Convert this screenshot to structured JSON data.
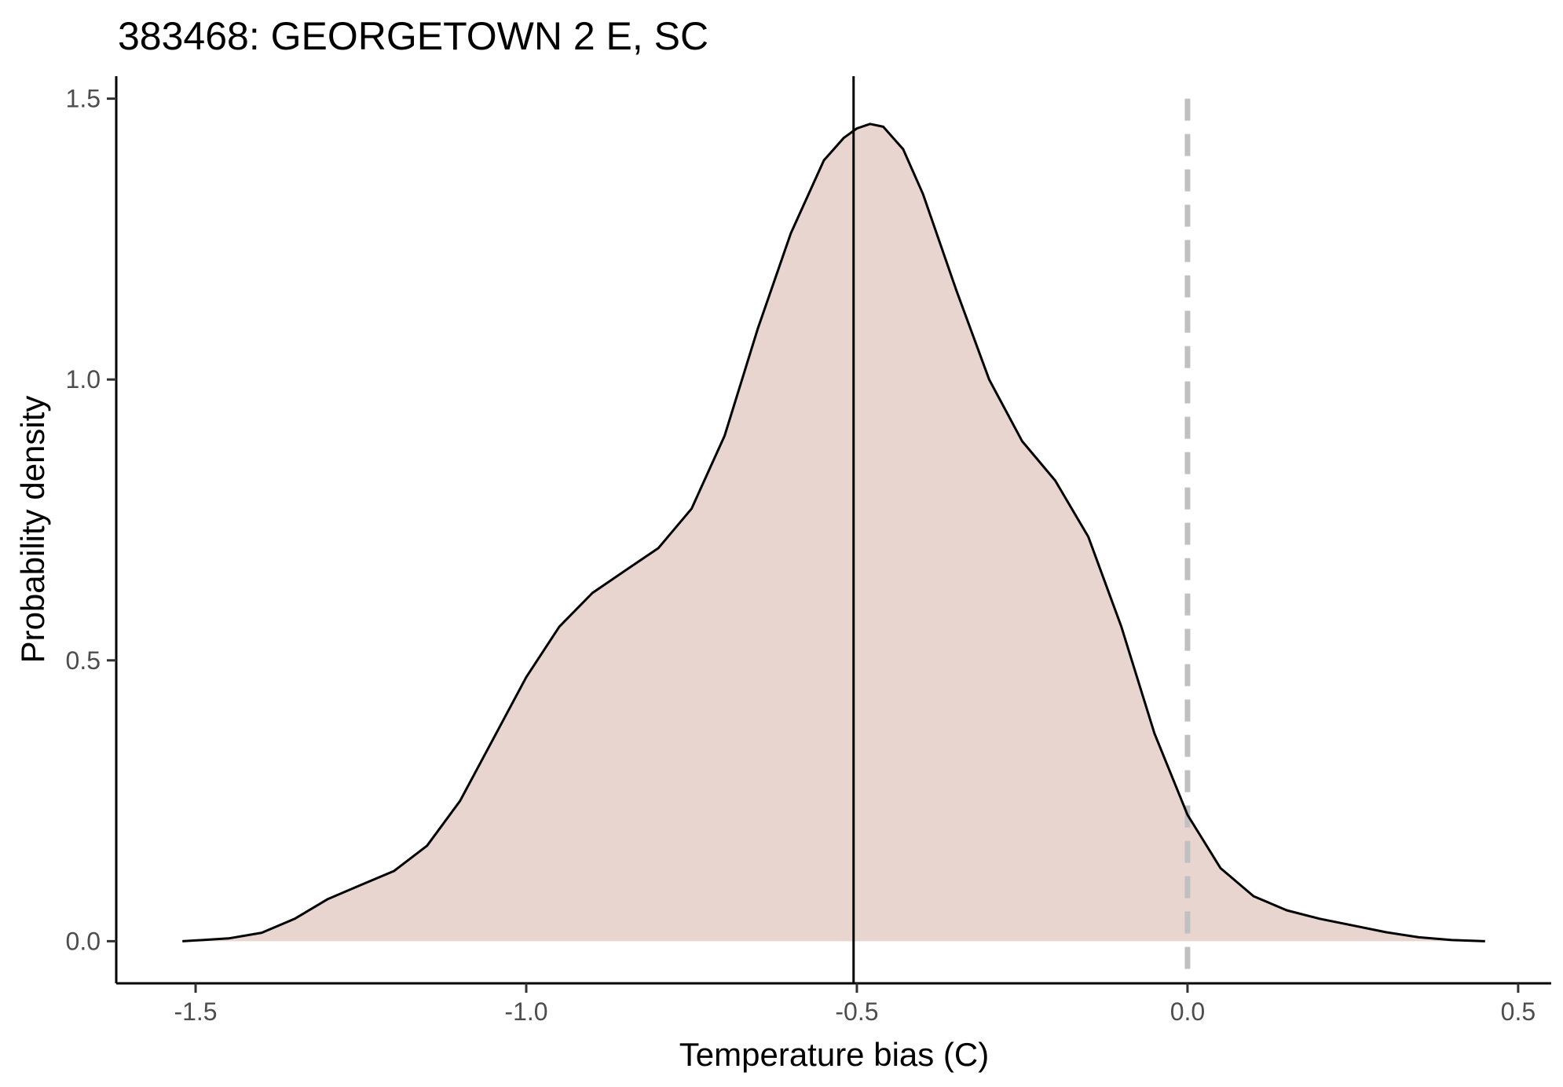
{
  "chart_data": {
    "type": "area",
    "title": "383468: GEORGETOWN 2 E, SC",
    "xlabel": "Temperature bias (C)",
    "ylabel": "Probability density",
    "xlim": [
      -1.62,
      0.55
    ],
    "ylim": [
      -0.075,
      1.54
    ],
    "x_ticks": [
      -1.5,
      -1.0,
      -0.5,
      0.0,
      0.5
    ],
    "x_tick_labels": [
      "-1.5",
      "-1.0",
      "-0.5",
      "0.0",
      "0.5"
    ],
    "y_ticks": [
      0.0,
      0.5,
      1.0,
      1.5
    ],
    "y_tick_labels": [
      "0.0",
      "0.5",
      "1.0",
      "1.5"
    ],
    "grid": false,
    "legend": "none",
    "fill_color": "#e8d5cf",
    "line_color": "#000000",
    "mean_line": {
      "x": -0.505,
      "color": "#000000",
      "style": "solid"
    },
    "zero_line": {
      "x": 0.0,
      "color": "#c0c0c0",
      "style": "dashed"
    },
    "series": [
      {
        "x": [
          -1.52,
          -1.45,
          -1.4,
          -1.35,
          -1.3,
          -1.25,
          -1.2,
          -1.15,
          -1.1,
          -1.05,
          -1.0,
          -0.95,
          -0.9,
          -0.85,
          -0.8,
          -0.75,
          -0.7,
          -0.65,
          -0.6,
          -0.55,
          -0.52,
          -0.5,
          -0.48,
          -0.46,
          -0.43,
          -0.4,
          -0.35,
          -0.3,
          -0.25,
          -0.2,
          -0.15,
          -0.1,
          -0.05,
          0.0,
          0.05,
          0.1,
          0.15,
          0.2,
          0.25,
          0.3,
          0.35,
          0.4,
          0.45
        ],
        "y": [
          0.0,
          0.005,
          0.015,
          0.04,
          0.075,
          0.1,
          0.125,
          0.17,
          0.25,
          0.36,
          0.47,
          0.56,
          0.62,
          0.66,
          0.7,
          0.77,
          0.9,
          1.09,
          1.26,
          1.39,
          1.43,
          1.447,
          1.455,
          1.45,
          1.41,
          1.33,
          1.16,
          1.0,
          0.89,
          0.82,
          0.72,
          0.56,
          0.37,
          0.225,
          0.13,
          0.08,
          0.055,
          0.04,
          0.028,
          0.016,
          0.007,
          0.002,
          0.0
        ]
      }
    ]
  }
}
